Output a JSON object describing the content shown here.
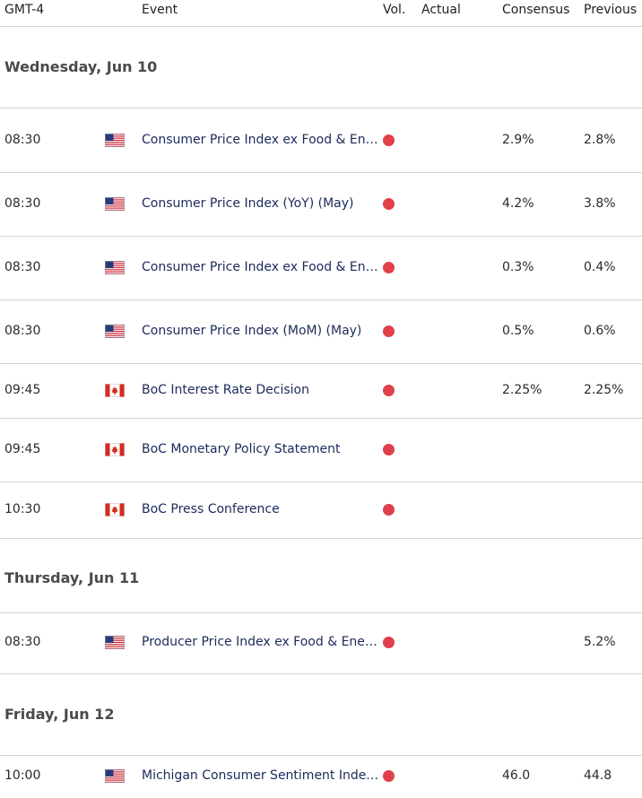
{
  "header": {
    "timezone": "GMT-4",
    "event": "Event",
    "vol": "Vol.",
    "actual": "Actual",
    "consensus": "Consensus",
    "previous": "Previous"
  },
  "colors": {
    "vol_high": "#e0404a",
    "event_text": "#1b2a5a",
    "divider": "#d4d4d4"
  },
  "days": [
    {
      "label": "Wednesday, Jun 10",
      "events": [
        {
          "time": "08:30",
          "flag": "us-flag-icon",
          "event": "Consumer Price Index ex Food & Energy (YoY) (May)",
          "volatility": "high",
          "actual": "",
          "consensus": "2.9%",
          "previous": "2.8%"
        },
        {
          "time": "08:30",
          "flag": "us-flag-icon",
          "event": "Consumer Price Index (YoY) (May)",
          "volatility": "high",
          "actual": "",
          "consensus": "4.2%",
          "previous": "3.8%"
        },
        {
          "time": "08:30",
          "flag": "us-flag-icon",
          "event": "Consumer Price Index ex Food & Energy (MoM) (May)",
          "volatility": "high",
          "actual": "",
          "consensus": "0.3%",
          "previous": "0.4%"
        },
        {
          "time": "08:30",
          "flag": "us-flag-icon",
          "event": "Consumer Price Index (MoM) (May)",
          "volatility": "high",
          "actual": "",
          "consensus": "0.5%",
          "previous": "0.6%"
        },
        {
          "time": "09:45",
          "flag": "canada-flag-icon",
          "event": "BoC Interest Rate Decision",
          "volatility": "high",
          "actual": "",
          "consensus": "2.25%",
          "previous": "2.25%"
        },
        {
          "time": "09:45",
          "flag": "canada-flag-icon",
          "event": "BoC Monetary Policy Statement",
          "volatility": "high",
          "actual": "",
          "consensus": "",
          "previous": ""
        },
        {
          "time": "10:30",
          "flag": "canada-flag-icon",
          "event": "BoC Press Conference",
          "volatility": "high",
          "actual": "",
          "consensus": "",
          "previous": ""
        }
      ]
    },
    {
      "label": "Thursday, Jun 11",
      "events": [
        {
          "time": "08:30",
          "flag": "us-flag-icon",
          "event": "Producer Price Index ex Food & Energy (YoY) (May)",
          "volatility": "high",
          "actual": "",
          "consensus": "",
          "previous": "5.2%"
        }
      ]
    },
    {
      "label": "Friday, Jun 12",
      "events": [
        {
          "time": "10:00",
          "flag": "us-flag-icon",
          "event": "Michigan Consumer Sentiment Index (Jun) PREL",
          "volatility": "high",
          "actual": "",
          "consensus": "46.0",
          "previous": "44.8"
        }
      ]
    }
  ]
}
